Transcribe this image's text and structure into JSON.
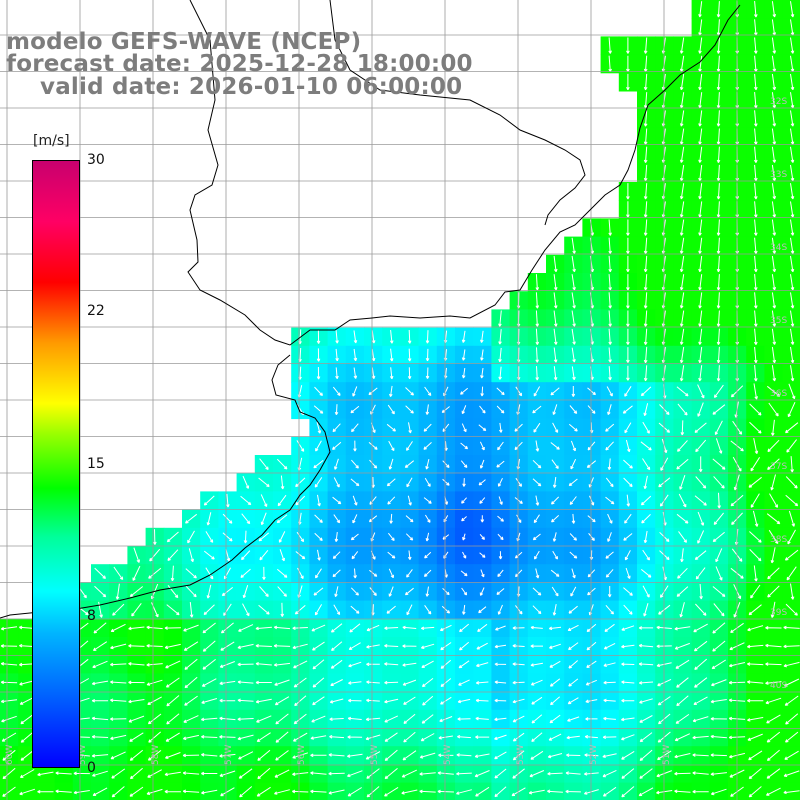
{
  "title": {
    "line1": "modelo GEFS-WAVE (NCEP)",
    "line2": "forecast date: 2025-12-28 18:00:00",
    "line3": "valid date: 2026-01-10 06:00:00"
  },
  "colorbar": {
    "unit": "[m/s]",
    "ticks": [
      "30",
      "22",
      "15",
      "8",
      "0"
    ],
    "range": [
      0,
      30
    ],
    "colors": [
      "#0000ff",
      "#00b4ff",
      "#00ffff",
      "#00ff00",
      "#ffff00",
      "#ff0000",
      "#c8006e"
    ]
  },
  "map": {
    "lat_labels": [
      "32S",
      "33S",
      "34S",
      "35S",
      "36S",
      "37S",
      "38S",
      "39S",
      "40S"
    ],
    "lon_labels": [
      "60W",
      "59W",
      "58W",
      "57W",
      "56W",
      "55W",
      "54W",
      "53W",
      "52W",
      "51W"
    ],
    "land_color": "#ffffff",
    "grid_color": "#9a9a9a"
  }
}
